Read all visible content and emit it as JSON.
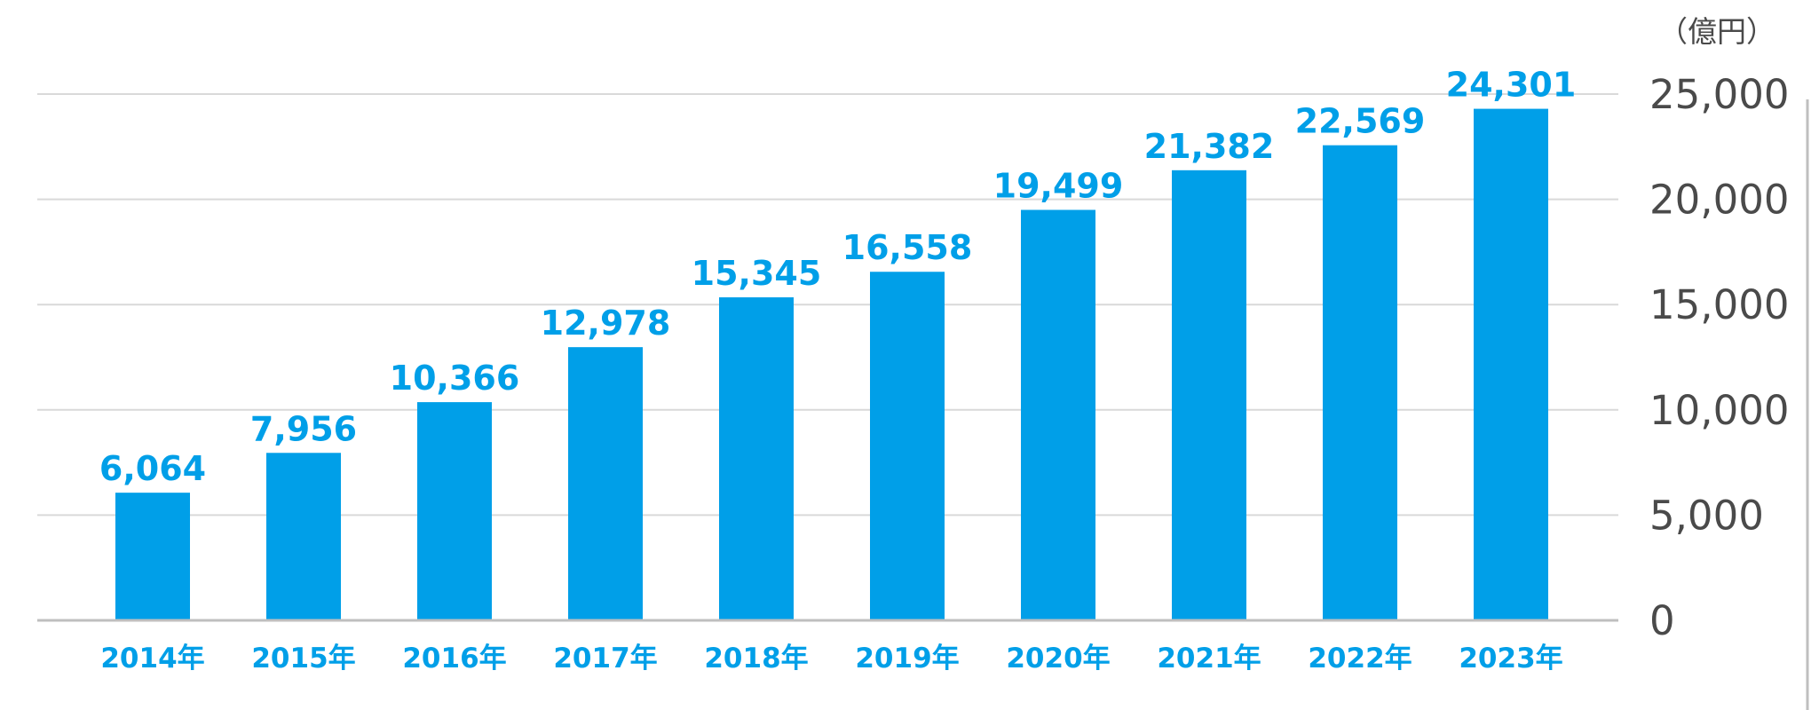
{
  "chart_data": {
    "type": "bar",
    "unit_label": "（億円）",
    "categories": [
      "2014年",
      "2015年",
      "2016年",
      "2017年",
      "2018年",
      "2019年",
      "2020年",
      "2021年",
      "2022年",
      "2023年"
    ],
    "values": [
      6064,
      7956,
      10366,
      12978,
      15345,
      16558,
      19499,
      21382,
      22569,
      24301
    ],
    "data_labels": [
      "6,064",
      "7,956",
      "10,366",
      "12,978",
      "15,345",
      "16,558",
      "19,499",
      "21,382",
      "22,569",
      "24,301"
    ],
    "y_ticks": [
      0,
      5000,
      10000,
      15000,
      20000,
      25000
    ],
    "y_tick_labels": [
      "0",
      "5,000",
      "10,000",
      "15,000",
      "20,000",
      "25,000"
    ],
    "ylim": [
      0,
      25000
    ],
    "grid": true,
    "y_axis_position": "right",
    "colors": {
      "bar": "#009fe8",
      "label": "#009fe8",
      "axis_text": "#4a4a4a",
      "grid": "#d9d9d9",
      "axis": "#bfbfbf"
    }
  }
}
